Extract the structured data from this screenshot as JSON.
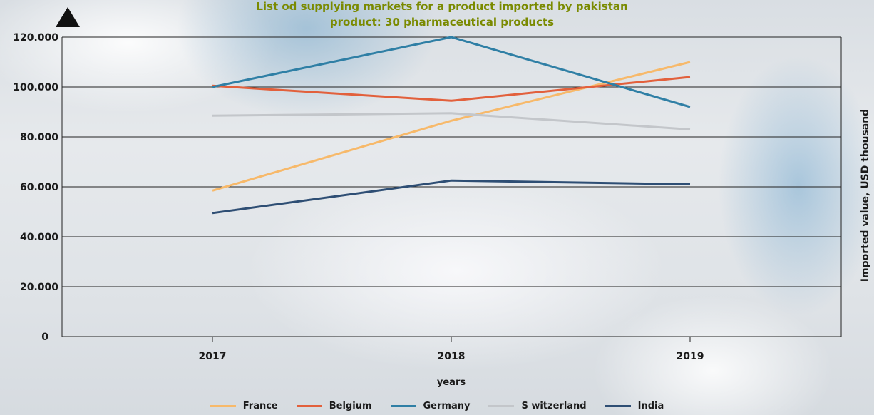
{
  "chart_data": {
    "type": "line",
    "title": "List od supplying markets for a product imported by pakistan",
    "subtitle": "product: 30 pharmaceutical products",
    "xlabel": "years",
    "ylabel": "Imported value, USD thousand",
    "categories": [
      "2017",
      "2018",
      "2019"
    ],
    "ylim": [
      0,
      120000
    ],
    "yticks": [
      "0",
      "20.000",
      "40.000",
      "60.000",
      "80.000",
      "100.000",
      "120.000"
    ],
    "grid": true,
    "legend_position": "bottom",
    "series": [
      {
        "name": "France",
        "color": "#f7b96a",
        "values": [
          58500,
          86500,
          110000
        ]
      },
      {
        "name": "Belgium",
        "color": "#e2603c",
        "values": [
          100500,
          94500,
          104000
        ]
      },
      {
        "name": "Germany",
        "color": "#2f7fa5",
        "values": [
          100000,
          120000,
          92000
        ]
      },
      {
        "name": "S witzerland",
        "color": "#c3c6ca",
        "values": [
          88500,
          89500,
          83000
        ]
      },
      {
        "name": "India",
        "color": "#2e4e74",
        "values": [
          49500,
          62500,
          61000
        ]
      }
    ]
  }
}
